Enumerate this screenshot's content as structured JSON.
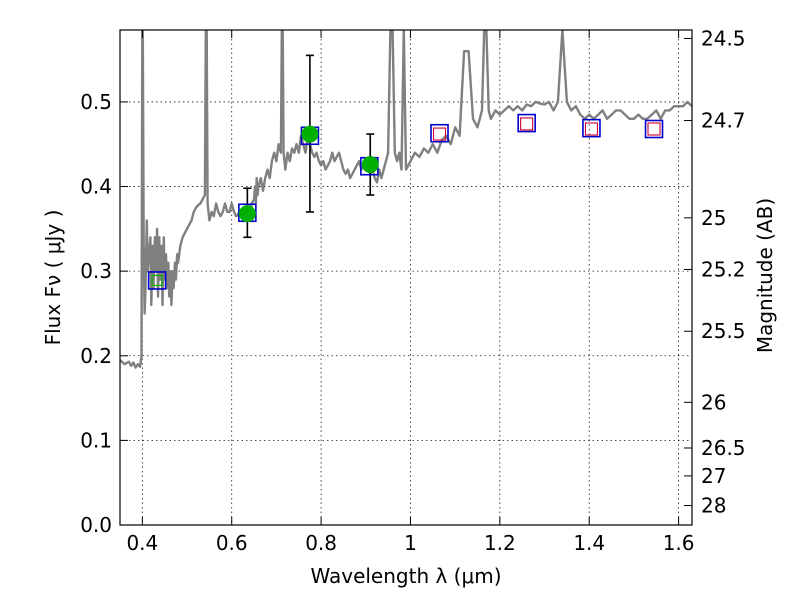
{
  "chart_data": {
    "type": "scatter",
    "xlabel": "Wavelength  λ (μm)",
    "ylabel": "Flux  Fν ( μJy )",
    "y2label": "Magnitude (AB)",
    "xlim": [
      0.35,
      1.63
    ],
    "ylim": [
      0.0,
      0.585
    ],
    "grid": true,
    "x_ticks": [
      0.4,
      0.6,
      0.8,
      1.0,
      1.2,
      1.4,
      1.6
    ],
    "x_tick_labels": [
      "0.4",
      "0.6",
      "0.8",
      "1",
      "1.2",
      "1.4",
      "1.6"
    ],
    "y_ticks": [
      0.0,
      0.1,
      0.2,
      0.3,
      0.4,
      0.5
    ],
    "y_tick_labels": [
      "0.0",
      "0.1",
      "0.2",
      "0.3",
      "0.4",
      "0.5"
    ],
    "y2_ticks": [
      {
        "label": "24.5",
        "flux": 0.575
      },
      {
        "label": "24.7",
        "flux": 0.478
      },
      {
        "label": "25",
        "flux": 0.363
      },
      {
        "label": "25.2",
        "flux": 0.302
      },
      {
        "label": "25.5",
        "flux": 0.229
      },
      {
        "label": "26",
        "flux": 0.145
      },
      {
        "label": "26.5",
        "flux": 0.091
      },
      {
        "label": "27",
        "flux": 0.058
      },
      {
        "label": "28",
        "flux": 0.023
      }
    ],
    "colors": {
      "model": "#808080",
      "observed": "#00b000",
      "model_box": "#0000cc",
      "prediction_box": "#cc0033",
      "errorbar": "#000000"
    },
    "series": [
      {
        "kind": "model_spectrum",
        "x": [
          0.35,
          0.36,
          0.37,
          0.375,
          0.38,
          0.385,
          0.39,
          0.395,
          0.398,
          0.4,
          0.401,
          0.403,
          0.405,
          0.407,
          0.41,
          0.412,
          0.415,
          0.418,
          0.42,
          0.423,
          0.425,
          0.428,
          0.43,
          0.433,
          0.435,
          0.438,
          0.44,
          0.443,
          0.445,
          0.448,
          0.45,
          0.453,
          0.455,
          0.458,
          0.46,
          0.463,
          0.465,
          0.468,
          0.47,
          0.473,
          0.475,
          0.478,
          0.48,
          0.485,
          0.49,
          0.495,
          0.5,
          0.505,
          0.51,
          0.515,
          0.52,
          0.525,
          0.53,
          0.535,
          0.54,
          0.542,
          0.544,
          0.546,
          0.548,
          0.55,
          0.555,
          0.56,
          0.565,
          0.57,
          0.575,
          0.58,
          0.585,
          0.59,
          0.595,
          0.6,
          0.605,
          0.61,
          0.615,
          0.62,
          0.625,
          0.63,
          0.635,
          0.64,
          0.645,
          0.65,
          0.652,
          0.654,
          0.656,
          0.658,
          0.66,
          0.665,
          0.67,
          0.675,
          0.68,
          0.685,
          0.69,
          0.695,
          0.7,
          0.705,
          0.71,
          0.712,
          0.714,
          0.716,
          0.718,
          0.72,
          0.725,
          0.73,
          0.735,
          0.74,
          0.745,
          0.75,
          0.755,
          0.76,
          0.765,
          0.77,
          0.775,
          0.78,
          0.785,
          0.79,
          0.795,
          0.8,
          0.805,
          0.81,
          0.815,
          0.82,
          0.825,
          0.83,
          0.835,
          0.84,
          0.845,
          0.85,
          0.855,
          0.86,
          0.865,
          0.87,
          0.875,
          0.88,
          0.885,
          0.89,
          0.895,
          0.9,
          0.905,
          0.91,
          0.915,
          0.92,
          0.925,
          0.93,
          0.935,
          0.94,
          0.945,
          0.95,
          0.955,
          0.96,
          0.965,
          0.97,
          0.975,
          0.98,
          0.985,
          0.99,
          1.0,
          1.01,
          1.02,
          1.03,
          1.04,
          1.05,
          1.06,
          1.07,
          1.08,
          1.09,
          1.1,
          1.11,
          1.12,
          1.13,
          1.14,
          1.15,
          1.16,
          1.165,
          1.17,
          1.175,
          1.18,
          1.19,
          1.2,
          1.21,
          1.22,
          1.23,
          1.24,
          1.25,
          1.26,
          1.27,
          1.28,
          1.29,
          1.3,
          1.31,
          1.32,
          1.33,
          1.34,
          1.35,
          1.36,
          1.37,
          1.38,
          1.39,
          1.4,
          1.41,
          1.42,
          1.43,
          1.44,
          1.45,
          1.46,
          1.47,
          1.48,
          1.49,
          1.5,
          1.51,
          1.52,
          1.53,
          1.54,
          1.55,
          1.56,
          1.57,
          1.58,
          1.59,
          1.6,
          1.61,
          1.62,
          1.63
        ],
        "y": [
          0.195,
          0.19,
          0.193,
          0.188,
          0.192,
          0.186,
          0.19,
          0.187,
          0.2,
          0.585,
          0.585,
          0.33,
          0.25,
          0.28,
          0.36,
          0.3,
          0.32,
          0.34,
          0.26,
          0.33,
          0.28,
          0.34,
          0.3,
          0.35,
          0.27,
          0.34,
          0.29,
          0.33,
          0.26,
          0.34,
          0.29,
          0.32,
          0.28,
          0.31,
          0.27,
          0.3,
          0.26,
          0.3,
          0.28,
          0.31,
          0.29,
          0.32,
          0.31,
          0.33,
          0.34,
          0.345,
          0.35,
          0.355,
          0.36,
          0.37,
          0.375,
          0.378,
          0.38,
          0.385,
          0.39,
          0.585,
          0.585,
          0.38,
          0.37,
          0.36,
          0.37,
          0.365,
          0.38,
          0.37,
          0.365,
          0.37,
          0.38,
          0.37,
          0.37,
          0.38,
          0.37,
          0.365,
          0.368,
          0.372,
          0.37,
          0.372,
          0.375,
          0.37,
          0.38,
          0.385,
          0.4,
          0.38,
          0.41,
          0.39,
          0.4,
          0.41,
          0.395,
          0.41,
          0.42,
          0.41,
          0.43,
          0.44,
          0.43,
          0.45,
          0.44,
          0.585,
          0.585,
          0.44,
          0.43,
          0.42,
          0.44,
          0.43,
          0.445,
          0.44,
          0.45,
          0.44,
          0.46,
          0.45,
          0.44,
          0.46,
          0.45,
          0.44,
          0.435,
          0.44,
          0.43,
          0.425,
          0.43,
          0.42,
          0.425,
          0.43,
          0.44,
          0.43,
          0.435,
          0.44,
          0.43,
          0.42,
          0.415,
          0.42,
          0.41,
          0.415,
          0.42,
          0.425,
          0.43,
          0.42,
          0.425,
          0.43,
          0.42,
          0.415,
          0.42,
          0.41,
          0.405,
          0.42,
          0.41,
          0.42,
          0.43,
          0.44,
          0.585,
          0.585,
          0.44,
          0.43,
          0.44,
          0.42,
          0.585,
          0.42,
          0.43,
          0.44,
          0.435,
          0.445,
          0.44,
          0.45,
          0.44,
          0.455,
          0.46,
          0.45,
          0.47,
          0.46,
          0.56,
          0.56,
          0.48,
          0.47,
          0.49,
          0.585,
          0.585,
          0.49,
          0.48,
          0.49,
          0.485,
          0.49,
          0.495,
          0.49,
          0.495,
          0.49,
          0.497,
          0.495,
          0.5,
          0.498,
          0.497,
          0.5,
          0.49,
          0.5,
          0.585,
          0.5,
          0.49,
          0.495,
          0.485,
          0.48,
          0.485,
          0.48,
          0.485,
          0.49,
          0.48,
          0.485,
          0.49,
          0.49,
          0.485,
          0.48,
          0.48,
          0.485,
          0.48,
          0.48,
          0.485,
          0.49,
          0.48,
          0.49,
          0.49,
          0.495,
          0.495,
          0.495,
          0.5,
          0.495
        ]
      },
      {
        "kind": "observed",
        "x": [
          0.635,
          0.775,
          0.91
        ],
        "y": [
          0.368,
          0.462,
          0.426
        ],
        "yerr_low": [
          0.028,
          0.092,
          0.036
        ],
        "yerr_high": [
          0.03,
          0.093,
          0.036
        ]
      },
      {
        "kind": "model_box",
        "x": [
          0.433,
          0.635,
          0.775,
          0.908,
          1.065,
          1.26,
          1.405,
          1.545
        ],
        "y": [
          0.289,
          0.369,
          0.46,
          0.424,
          0.463,
          0.475,
          0.469,
          0.468
        ]
      },
      {
        "kind": "prediction_box",
        "x": [
          1.065,
          1.26,
          1.405,
          1.545
        ],
        "y": [
          0.462,
          0.474,
          0.468,
          0.468
        ]
      }
    ]
  }
}
